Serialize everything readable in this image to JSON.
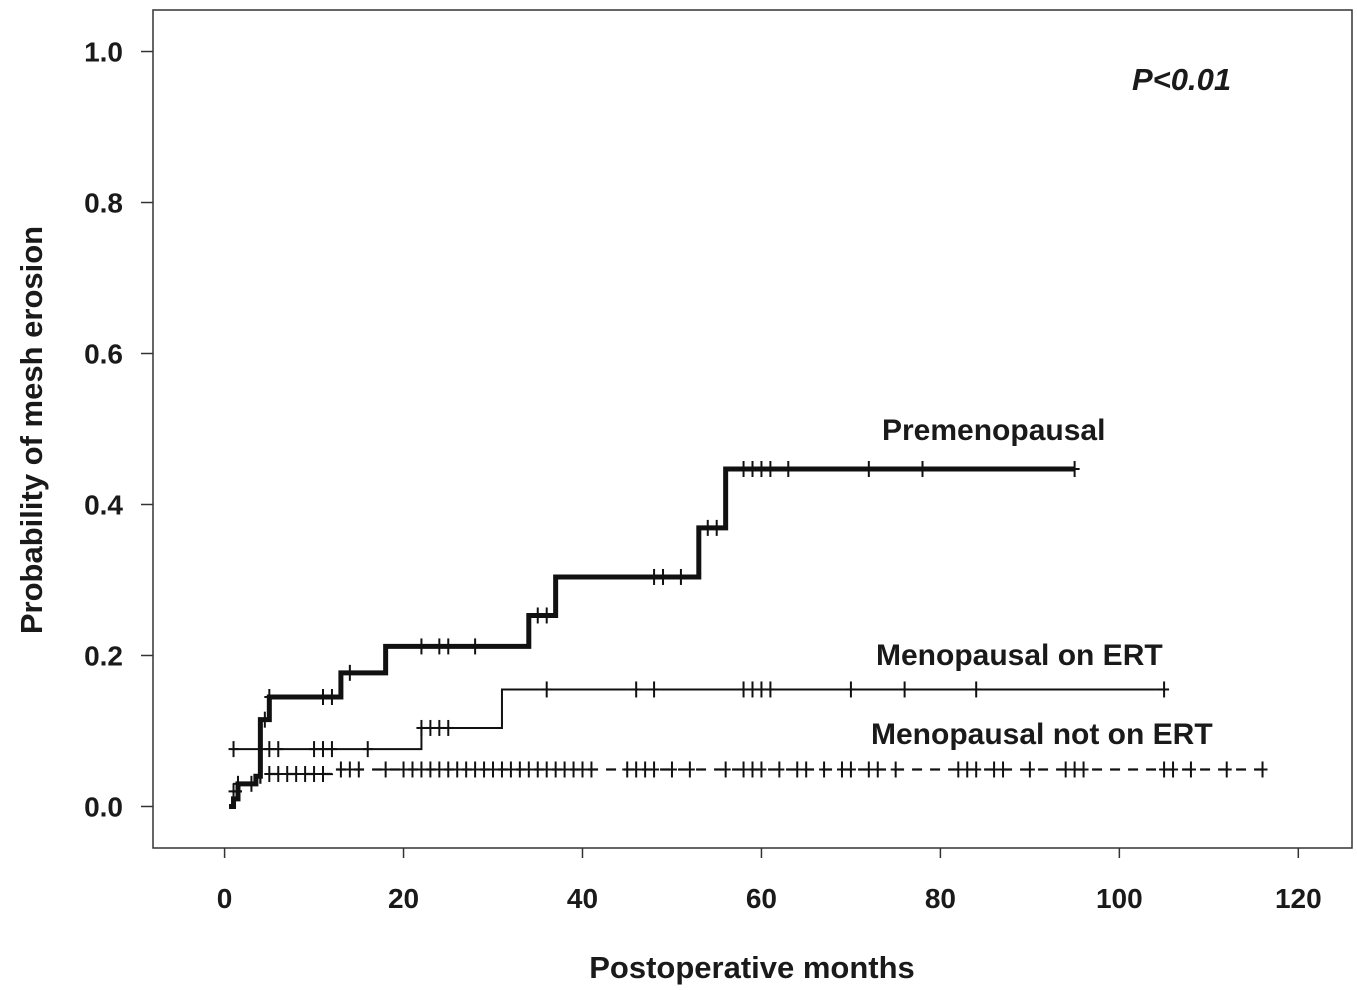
{
  "chart_data": {
    "type": "line",
    "subtype": "kaplan-meier-step",
    "title": "",
    "xlabel": "Postoperative months",
    "ylabel": "Probability of mesh erosion",
    "annotation": "P<0.01",
    "xlim": [
      -8,
      126
    ],
    "ylim": [
      -0.055,
      1.055
    ],
    "xticks": [
      0,
      20,
      40,
      60,
      80,
      100,
      120
    ],
    "yticks": [
      0.0,
      0.2,
      0.4,
      0.6,
      0.8,
      1.0
    ],
    "xtick_labels": [
      "0",
      "20",
      "40",
      "60",
      "80",
      "100",
      "120"
    ],
    "ytick_labels": [
      "0.0",
      "0.2",
      "0.4",
      "0.6",
      "0.8",
      "1.0"
    ],
    "grid": false,
    "legend": "none",
    "series": [
      {
        "name": "Premenopausal",
        "line_style": "thick-solid",
        "color": "#111111",
        "steps": [
          [
            0.5,
            0.0
          ],
          [
            1.0,
            0.01
          ],
          [
            1.5,
            0.03
          ],
          [
            3.5,
            0.04
          ],
          [
            4.0,
            0.115
          ],
          [
            5.0,
            0.145
          ],
          [
            13.0,
            0.177
          ],
          [
            18.0,
            0.212
          ],
          [
            34.0,
            0.253
          ],
          [
            37.0,
            0.304
          ],
          [
            53.0,
            0.369
          ],
          [
            56.0,
            0.447
          ],
          [
            95.0,
            0.447
          ]
        ],
        "censored": [
          [
            1.5,
            0.03
          ],
          [
            4.5,
            0.115
          ],
          [
            5.0,
            0.145
          ],
          [
            11,
            0.145
          ],
          [
            12,
            0.145
          ],
          [
            14,
            0.177
          ],
          [
            22,
            0.212
          ],
          [
            24,
            0.212
          ],
          [
            25,
            0.212
          ],
          [
            28,
            0.212
          ],
          [
            35,
            0.253
          ],
          [
            36,
            0.253
          ],
          [
            48,
            0.304
          ],
          [
            49,
            0.304
          ],
          [
            51,
            0.304
          ],
          [
            54,
            0.369
          ],
          [
            55,
            0.369
          ],
          [
            58,
            0.447
          ],
          [
            59,
            0.447
          ],
          [
            60,
            0.447
          ],
          [
            61,
            0.447
          ],
          [
            63,
            0.447
          ],
          [
            72,
            0.447
          ],
          [
            78,
            0.447
          ],
          [
            95,
            0.447
          ]
        ]
      },
      {
        "name": "Menopausal on ERT",
        "line_style": "thin-solid",
        "color": "#111111",
        "steps": [
          [
            1.0,
            0.076
          ],
          [
            22.0,
            0.104
          ],
          [
            31.0,
            0.155
          ],
          [
            105.0,
            0.155
          ]
        ],
        "censored": [
          [
            1,
            0.076
          ],
          [
            5,
            0.076
          ],
          [
            6,
            0.076
          ],
          [
            10,
            0.076
          ],
          [
            11,
            0.076
          ],
          [
            12,
            0.076
          ],
          [
            16,
            0.076
          ],
          [
            22,
            0.104
          ],
          [
            23,
            0.104
          ],
          [
            24,
            0.104
          ],
          [
            25,
            0.104
          ],
          [
            36,
            0.155
          ],
          [
            46,
            0.155
          ],
          [
            48,
            0.155
          ],
          [
            58,
            0.155
          ],
          [
            59,
            0.155
          ],
          [
            60,
            0.155
          ],
          [
            61,
            0.155
          ],
          [
            70,
            0.155
          ],
          [
            76,
            0.155
          ],
          [
            84,
            0.155
          ],
          [
            105,
            0.155
          ]
        ]
      },
      {
        "name": "Menopausal not on ERT",
        "line_style": "dashed",
        "color": "#111111",
        "steps": [
          [
            0.5,
            0.0
          ],
          [
            1.0,
            0.02
          ],
          [
            2.0,
            0.03
          ],
          [
            4.0,
            0.043
          ],
          [
            12.0,
            0.049
          ],
          [
            116.0,
            0.049
          ]
        ],
        "censored": [
          [
            1,
            0.02
          ],
          [
            3,
            0.03
          ],
          [
            5,
            0.043
          ],
          [
            6,
            0.043
          ],
          [
            7,
            0.043
          ],
          [
            8,
            0.043
          ],
          [
            9,
            0.043
          ],
          [
            10,
            0.043
          ],
          [
            11,
            0.043
          ],
          [
            13,
            0.049
          ],
          [
            14,
            0.049
          ],
          [
            15,
            0.049
          ],
          [
            18,
            0.049
          ],
          [
            20,
            0.049
          ],
          [
            21,
            0.049
          ],
          [
            22,
            0.049
          ],
          [
            23,
            0.049
          ],
          [
            24,
            0.049
          ],
          [
            25,
            0.049
          ],
          [
            26,
            0.049
          ],
          [
            27,
            0.049
          ],
          [
            28,
            0.049
          ],
          [
            29,
            0.049
          ],
          [
            30,
            0.049
          ],
          [
            31,
            0.049
          ],
          [
            32,
            0.049
          ],
          [
            33,
            0.049
          ],
          [
            34,
            0.049
          ],
          [
            35,
            0.049
          ],
          [
            36,
            0.049
          ],
          [
            37,
            0.049
          ],
          [
            38,
            0.049
          ],
          [
            39,
            0.049
          ],
          [
            40,
            0.049
          ],
          [
            41,
            0.049
          ],
          [
            45,
            0.049
          ],
          [
            46,
            0.049
          ],
          [
            47,
            0.049
          ],
          [
            48,
            0.049
          ],
          [
            50,
            0.049
          ],
          [
            52,
            0.049
          ],
          [
            56,
            0.049
          ],
          [
            58,
            0.049
          ],
          [
            59,
            0.049
          ],
          [
            60,
            0.049
          ],
          [
            62,
            0.049
          ],
          [
            64,
            0.049
          ],
          [
            65,
            0.049
          ],
          [
            67,
            0.049
          ],
          [
            69,
            0.049
          ],
          [
            70,
            0.049
          ],
          [
            72,
            0.049
          ],
          [
            73,
            0.049
          ],
          [
            75,
            0.049
          ],
          [
            82,
            0.049
          ],
          [
            83,
            0.049
          ],
          [
            84,
            0.049
          ],
          [
            86,
            0.049
          ],
          [
            87,
            0.049
          ],
          [
            90,
            0.049
          ],
          [
            94,
            0.049
          ],
          [
            95,
            0.049
          ],
          [
            96,
            0.049
          ],
          [
            105,
            0.049
          ],
          [
            106,
            0.049
          ],
          [
            108,
            0.049
          ],
          [
            112,
            0.049
          ],
          [
            116,
            0.049
          ]
        ]
      }
    ]
  }
}
